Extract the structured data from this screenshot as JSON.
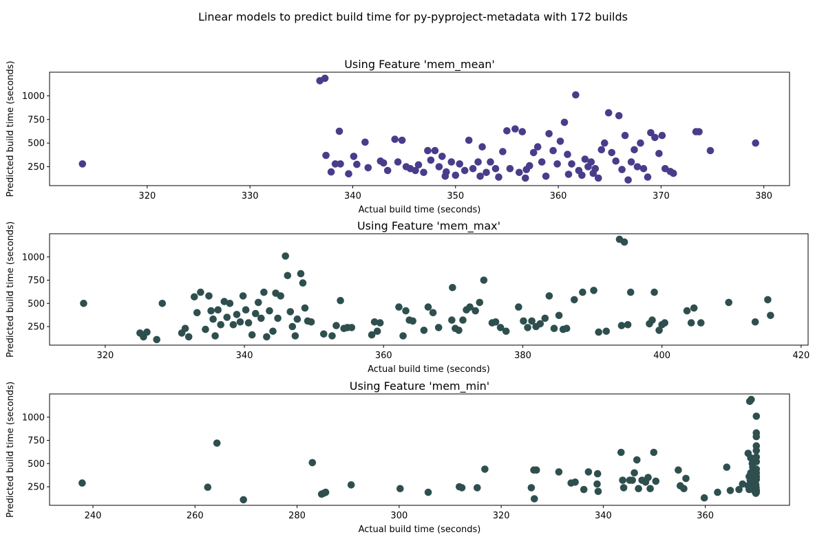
{
  "suptitle": "Linear models to predict build time for py-pyproject-metadata with 172 builds",
  "chart_data": [
    {
      "type": "scatter",
      "title": "Using Feature 'mem_mean'",
      "xlabel": "Actual build time (seconds)",
      "ylabel": "Predicted build time (seconds)",
      "color": "#483d8b",
      "xlim": [
        310.5,
        382.5
      ],
      "ylim": [
        50,
        1250
      ],
      "xticks": [
        320,
        330,
        340,
        350,
        360,
        370,
        380
      ],
      "yticks": [
        250,
        500,
        750,
        1000
      ],
      "points": [
        [
          313.7,
          280
        ],
        [
          336.8,
          1160
        ],
        [
          337.3,
          1185
        ],
        [
          337.4,
          370
        ],
        [
          337.9,
          195
        ],
        [
          338.3,
          280
        ],
        [
          338.8,
          280
        ],
        [
          338.7,
          625
        ],
        [
          339.6,
          175
        ],
        [
          340.1,
          360
        ],
        [
          340.4,
          275
        ],
        [
          341.2,
          510
        ],
        [
          341.5,
          240
        ],
        [
          342.7,
          310
        ],
        [
          343.0,
          290
        ],
        [
          343.4,
          210
        ],
        [
          344.1,
          540
        ],
        [
          344.4,
          300
        ],
        [
          344.8,
          530
        ],
        [
          345.2,
          250
        ],
        [
          345.6,
          230
        ],
        [
          346.1,
          210
        ],
        [
          346.4,
          270
        ],
        [
          346.9,
          190
        ],
        [
          347.3,
          420
        ],
        [
          347.6,
          320
        ],
        [
          348.0,
          420
        ],
        [
          348.4,
          250
        ],
        [
          348.7,
          360
        ],
        [
          349.1,
          195
        ],
        [
          349.6,
          300
        ],
        [
          350.0,
          160
        ],
        [
          350.4,
          280
        ],
        [
          350.9,
          210
        ],
        [
          351.3,
          530
        ],
        [
          351.7,
          230
        ],
        [
          352.2,
          300
        ],
        [
          352.6,
          460
        ],
        [
          353.0,
          190
        ],
        [
          353.4,
          300
        ],
        [
          353.9,
          230
        ],
        [
          354.2,
          140
        ],
        [
          354.6,
          410
        ],
        [
          355.0,
          630
        ],
        [
          355.3,
          230
        ],
        [
          355.8,
          650
        ],
        [
          356.2,
          190
        ],
        [
          356.5,
          620
        ],
        [
          356.8,
          130
        ],
        [
          357.2,
          260
        ],
        [
          357.6,
          400
        ],
        [
          358.0,
          460
        ],
        [
          358.4,
          300
        ],
        [
          358.8,
          150
        ],
        [
          359.1,
          600
        ],
        [
          359.5,
          420
        ],
        [
          359.9,
          280
        ],
        [
          360.2,
          520
        ],
        [
          360.6,
          720
        ],
        [
          360.9,
          380
        ],
        [
          361.3,
          280
        ],
        [
          361.7,
          1010
        ],
        [
          362.0,
          210
        ],
        [
          362.3,
          160
        ],
        [
          362.6,
          330
        ],
        [
          362.9,
          250
        ],
        [
          363.2,
          300
        ],
        [
          363.6,
          230
        ],
        [
          363.9,
          130
        ],
        [
          364.2,
          430
        ],
        [
          364.5,
          500
        ],
        [
          364.9,
          820
        ],
        [
          365.2,
          400
        ],
        [
          365.6,
          310
        ],
        [
          365.9,
          790
        ],
        [
          366.2,
          220
        ],
        [
          366.5,
          580
        ],
        [
          366.8,
          110
        ],
        [
          367.1,
          300
        ],
        [
          367.4,
          430
        ],
        [
          367.7,
          250
        ],
        [
          368.0,
          500
        ],
        [
          368.3,
          230
        ],
        [
          368.7,
          140
        ],
        [
          369.0,
          610
        ],
        [
          369.4,
          560
        ],
        [
          369.8,
          390
        ],
        [
          370.1,
          580
        ],
        [
          370.4,
          230
        ],
        [
          370.9,
          200
        ],
        [
          371.2,
          180
        ],
        [
          373.4,
          620
        ],
        [
          373.7,
          620
        ],
        [
          374.8,
          420
        ],
        [
          379.2,
          500
        ],
        [
          352.4,
          150
        ],
        [
          349.0,
          150
        ],
        [
          356.9,
          220
        ],
        [
          361.0,
          170
        ],
        [
          363.4,
          180
        ]
      ]
    },
    {
      "type": "scatter",
      "title": "Using Feature 'mem_max'",
      "xlabel": "Actual build time (seconds)",
      "ylabel": "Predicted build time (seconds)",
      "color": "#2f4f4f",
      "xlim": [
        312,
        421
      ],
      "ylim": [
        50,
        1250
      ],
      "xticks": [
        320,
        340,
        360,
        380,
        400,
        420
      ],
      "yticks": [
        250,
        500,
        750,
        1000
      ],
      "points": [
        [
          316.9,
          500
        ],
        [
          325.0,
          180
        ],
        [
          325.5,
          140
        ],
        [
          326.0,
          190
        ],
        [
          327.4,
          110
        ],
        [
          328.2,
          500
        ],
        [
          331.0,
          180
        ],
        [
          331.5,
          230
        ],
        [
          332.0,
          140
        ],
        [
          332.8,
          570
        ],
        [
          333.2,
          400
        ],
        [
          333.7,
          620
        ],
        [
          334.4,
          220
        ],
        [
          334.9,
          580
        ],
        [
          335.2,
          420
        ],
        [
          335.5,
          330
        ],
        [
          335.8,
          150
        ],
        [
          336.2,
          430
        ],
        [
          336.6,
          270
        ],
        [
          337.1,
          520
        ],
        [
          337.5,
          350
        ],
        [
          337.9,
          500
        ],
        [
          338.4,
          270
        ],
        [
          338.9,
          380
        ],
        [
          339.4,
          300
        ],
        [
          339.8,
          580
        ],
        [
          340.2,
          430
        ],
        [
          340.6,
          290
        ],
        [
          341.1,
          160
        ],
        [
          341.6,
          390
        ],
        [
          342.0,
          510
        ],
        [
          342.4,
          340
        ],
        [
          342.8,
          620
        ],
        [
          343.2,
          140
        ],
        [
          343.6,
          420
        ],
        [
          344.1,
          200
        ],
        [
          344.5,
          610
        ],
        [
          344.8,
          340
        ],
        [
          345.2,
          580
        ],
        [
          345.9,
          1010
        ],
        [
          346.2,
          800
        ],
        [
          346.6,
          410
        ],
        [
          346.9,
          250
        ],
        [
          347.3,
          150
        ],
        [
          347.6,
          330
        ],
        [
          348.1,
          820
        ],
        [
          348.4,
          720
        ],
        [
          348.7,
          450
        ],
        [
          349.1,
          310
        ],
        [
          349.6,
          300
        ],
        [
          351.4,
          170
        ],
        [
          352.6,
          150
        ],
        [
          353.2,
          260
        ],
        [
          353.8,
          530
        ],
        [
          354.3,
          230
        ],
        [
          354.8,
          240
        ],
        [
          355.4,
          240
        ],
        [
          358.3,
          160
        ],
        [
          358.7,
          300
        ],
        [
          359.1,
          200
        ],
        [
          359.5,
          290
        ],
        [
          362.2,
          460
        ],
        [
          362.8,
          150
        ],
        [
          363.2,
          420
        ],
        [
          363.7,
          320
        ],
        [
          364.2,
          310
        ],
        [
          365.8,
          210
        ],
        [
          366.4,
          460
        ],
        [
          367.1,
          400
        ],
        [
          367.9,
          240
        ],
        [
          369.8,
          320
        ],
        [
          370.3,
          230
        ],
        [
          370.8,
          210
        ],
        [
          371.4,
          320
        ],
        [
          371.9,
          430
        ],
        [
          372.4,
          460
        ],
        [
          373.2,
          420
        ],
        [
          373.8,
          510
        ],
        [
          374.4,
          750
        ],
        [
          375.6,
          290
        ],
        [
          376.1,
          300
        ],
        [
          376.8,
          240
        ],
        [
          377.6,
          200
        ],
        [
          379.4,
          460
        ],
        [
          380.1,
          310
        ],
        [
          380.7,
          240
        ],
        [
          381.3,
          310
        ],
        [
          381.9,
          250
        ],
        [
          382.5,
          280
        ],
        [
          383.2,
          340
        ],
        [
          383.8,
          580
        ],
        [
          384.5,
          230
        ],
        [
          385.2,
          370
        ],
        [
          385.8,
          220
        ],
        [
          386.3,
          230
        ],
        [
          387.4,
          540
        ],
        [
          388.6,
          620
        ],
        [
          390.2,
          640
        ],
        [
          390.9,
          190
        ],
        [
          392.0,
          200
        ],
        [
          393.9,
          1190
        ],
        [
          394.6,
          1160
        ],
        [
          394.2,
          260
        ],
        [
          395.1,
          270
        ],
        [
          395.5,
          620
        ],
        [
          398.2,
          280
        ],
        [
          398.6,
          320
        ],
        [
          398.9,
          620
        ],
        [
          399.6,
          210
        ],
        [
          400.0,
          270
        ],
        [
          400.4,
          290
        ],
        [
          403.6,
          420
        ],
        [
          404.2,
          290
        ],
        [
          404.6,
          450
        ],
        [
          405.6,
          290
        ],
        [
          409.6,
          510
        ],
        [
          413.4,
          300
        ],
        [
          415.2,
          540
        ],
        [
          415.6,
          370
        ],
        [
          369.9,
          670
        ]
      ]
    },
    {
      "type": "scatter",
      "title": "Using Feature 'mem_min'",
      "xlabel": "Actual build time (seconds)",
      "ylabel": "Predicted build time (seconds)",
      "color": "#2f4f4f",
      "xlim": [
        231.5,
        376.5
      ],
      "ylim": [
        50,
        1250
      ],
      "xticks": [
        240,
        260,
        280,
        300,
        320,
        340,
        360
      ],
      "yticks": [
        250,
        500,
        750,
        1000
      ],
      "points": [
        [
          237.9,
          290
        ],
        [
          262.5,
          245
        ],
        [
          264.3,
          720
        ],
        [
          269.5,
          110
        ],
        [
          283.0,
          510
        ],
        [
          284.8,
          170
        ],
        [
          285.2,
          180
        ],
        [
          285.6,
          190
        ],
        [
          290.6,
          270
        ],
        [
          300.2,
          230
        ],
        [
          305.7,
          190
        ],
        [
          311.8,
          250
        ],
        [
          312.3,
          240
        ],
        [
          315.3,
          240
        ],
        [
          316.8,
          440
        ],
        [
          325.9,
          240
        ],
        [
          326.4,
          430
        ],
        [
          326.9,
          430
        ],
        [
          326.5,
          120
        ],
        [
          331.3,
          410
        ],
        [
          333.7,
          290
        ],
        [
          334.5,
          300
        ],
        [
          336.2,
          220
        ],
        [
          337.1,
          410
        ],
        [
          338.8,
          280
        ],
        [
          338.9,
          390
        ],
        [
          339.0,
          200
        ],
        [
          343.5,
          620
        ],
        [
          343.8,
          320
        ],
        [
          344.0,
          240
        ],
        [
          345.2,
          320
        ],
        [
          345.7,
          320
        ],
        [
          346.1,
          400
        ],
        [
          346.6,
          540
        ],
        [
          346.9,
          230
        ],
        [
          347.6,
          320
        ],
        [
          348.3,
          300
        ],
        [
          348.8,
          350
        ],
        [
          349.2,
          230
        ],
        [
          349.9,
          620
        ],
        [
          350.3,
          310
        ],
        [
          354.7,
          430
        ],
        [
          355.1,
          260
        ],
        [
          355.8,
          230
        ],
        [
          356.2,
          340
        ],
        [
          359.8,
          130
        ],
        [
          362.4,
          190
        ],
        [
          364.2,
          460
        ],
        [
          364.9,
          210
        ],
        [
          366.6,
          220
        ],
        [
          367.3,
          280
        ],
        [
          368.4,
          610
        ],
        [
          368.7,
          1170
        ],
        [
          369.0,
          1190
        ],
        [
          368.9,
          560
        ],
        [
          369.2,
          500
        ],
        [
          369.3,
          460
        ],
        [
          369.4,
          420
        ],
        [
          369.5,
          380
        ],
        [
          369.6,
          350
        ],
        [
          369.7,
          330
        ],
        [
          369.8,
          300
        ],
        [
          369.9,
          270
        ],
        [
          369.95,
          240
        ],
        [
          370.0,
          210
        ],
        [
          370.0,
          190
        ],
        [
          368.6,
          360
        ],
        [
          368.8,
          320
        ],
        [
          369.1,
          280
        ],
        [
          369.3,
          250
        ],
        [
          369.5,
          220
        ],
        [
          369.7,
          200
        ],
        [
          369.9,
          180
        ],
        [
          370.0,
          1010
        ],
        [
          370.0,
          830
        ],
        [
          370.0,
          790
        ],
        [
          370.0,
          690
        ],
        [
          370.0,
          640
        ],
        [
          370.0,
          570
        ],
        [
          370.0,
          520
        ],
        [
          370.0,
          440
        ],
        [
          370.0,
          400
        ],
        [
          370.0,
          360
        ],
        [
          370.0,
          330
        ],
        [
          368.9,
          400
        ],
        [
          369.2,
          300
        ],
        [
          369.6,
          260
        ],
        [
          368.4,
          260
        ],
        [
          368.6,
          220
        ]
      ]
    }
  ]
}
